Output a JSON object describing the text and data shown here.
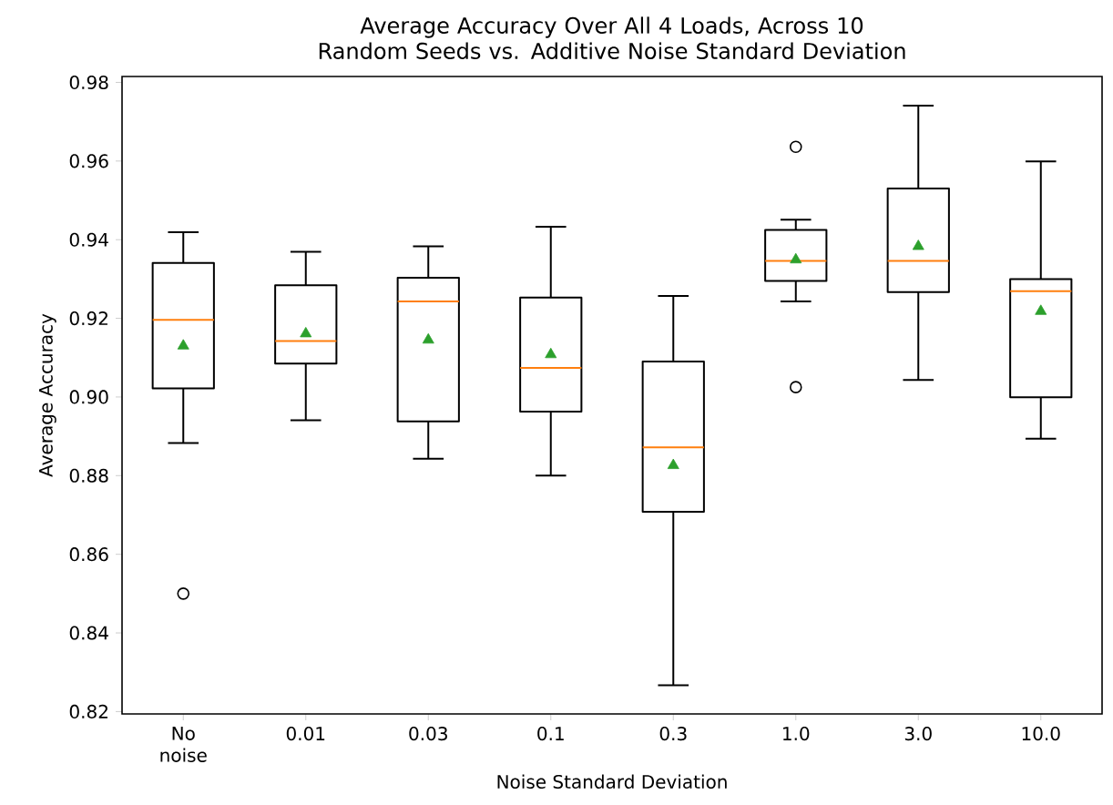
{
  "chart_data": {
    "type": "box",
    "title": "Average Accuracy Over All 4 Loads, Across 10 Random Seeds vs. Additive Noise Standard Deviation",
    "xlabel": "Noise Standard Deviation",
    "ylabel": "Average Accuracy",
    "categories": [
      "No noise",
      "0.01",
      "0.03",
      "0.1",
      "0.3",
      "1.0",
      "3.0",
      "10.0"
    ],
    "boxes": [
      {
        "low": 0.8883,
        "q1": 0.9022,
        "median": 0.9196,
        "q3": 0.9341,
        "high": 0.9419,
        "mean": 0.913,
        "outliers": [
          0.85
        ]
      },
      {
        "low": 0.8941,
        "q1": 0.9085,
        "median": 0.9142,
        "q3": 0.9284,
        "high": 0.9369,
        "mean": 0.9161
      },
      {
        "low": 0.8843,
        "q1": 0.8938,
        "median": 0.9243,
        "q3": 0.9303,
        "high": 0.9383,
        "mean": 0.9145
      },
      {
        "low": 0.88,
        "q1": 0.8963,
        "median": 0.9074,
        "q3": 0.9253,
        "high": 0.9433,
        "mean": 0.9108
      },
      {
        "low": 0.8267,
        "q1": 0.8708,
        "median": 0.8872,
        "q3": 0.909,
        "high": 0.9257,
        "mean": 0.8826
      },
      {
        "low": 0.9243,
        "q1": 0.9295,
        "median": 0.9346,
        "q3": 0.9425,
        "high": 0.9451,
        "mean": 0.9349,
        "outliers": [
          0.9636,
          0.9025
        ]
      },
      {
        "low": 0.9043,
        "q1": 0.9267,
        "median": 0.9346,
        "q3": 0.953,
        "high": 0.9741,
        "mean": 0.9383
      },
      {
        "low": 0.8894,
        "q1": 0.8999,
        "median": 0.9269,
        "q3": 0.93,
        "high": 0.9599,
        "mean": 0.9218
      }
    ],
    "ylim": [
      0.8194,
      0.9815
    ],
    "yticks": [
      0.82,
      0.84,
      0.86,
      0.88,
      {
        "value": 0.9,
        "label": "0.90"
      },
      0.92,
      0.94,
      0.96,
      0.98
    ]
  }
}
